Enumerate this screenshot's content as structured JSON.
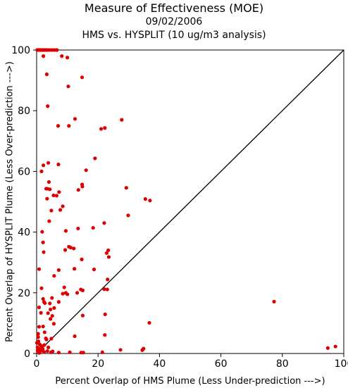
{
  "chart_data": {
    "type": "scatter",
    "title": "Measure of Effectiveness (MOE)",
    "subtitle": "09/02/2006",
    "subtitle2": "HMS vs. HYSPLIT  (10 ug/m3 analysis)",
    "xlabel": "Percent Overlap of HMS Plume (Less Under-prediction --->)",
    "ylabel": "Percent Overlap of HYSPLIT Plume (Less Over-prediction --->)",
    "xlim": [
      0,
      100
    ],
    "ylim": [
      0,
      100
    ],
    "xticks": [
      0,
      20,
      40,
      60,
      80,
      100
    ],
    "yticks": [
      0,
      20,
      40,
      60,
      80,
      100
    ],
    "xtick_labels": [
      "0",
      "20",
      "40",
      "60",
      "80",
      "100"
    ],
    "ytick_labels": [
      "0",
      "20",
      "40",
      "60",
      "80",
      "100"
    ],
    "reference_line": {
      "from": [
        0,
        0
      ],
      "to": [
        100,
        100
      ],
      "color": "#000000"
    },
    "marker_color": "#dd0000",
    "series": [
      {
        "points": [
          [
            0.2,
            100
          ],
          [
            0.5,
            100
          ],
          [
            0.8,
            100
          ],
          [
            1.2,
            100
          ],
          [
            1.6,
            100
          ],
          [
            2.0,
            100
          ],
          [
            2.5,
            100
          ],
          [
            3.0,
            100
          ],
          [
            3.5,
            100
          ],
          [
            4.2,
            100
          ],
          [
            5.0,
            100
          ],
          [
            5.8,
            100
          ],
          [
            6.6,
            100
          ],
          [
            2.2,
            98
          ],
          [
            8.2,
            98
          ],
          [
            10.0,
            97.5
          ],
          [
            14.8,
            91
          ],
          [
            3.3,
            92
          ],
          [
            10.3,
            88
          ],
          [
            3.6,
            81.5
          ],
          [
            7.0,
            75
          ],
          [
            10.5,
            75
          ],
          [
            12.5,
            77.3
          ],
          [
            21.0,
            74
          ],
          [
            22.2,
            74.3
          ],
          [
            27.7,
            77
          ],
          [
            3.8,
            62.8
          ],
          [
            2.2,
            62
          ],
          [
            1.6,
            60
          ],
          [
            7.1,
            62.3
          ],
          [
            19.0,
            64.3
          ],
          [
            16.1,
            60.4
          ],
          [
            3.1,
            54.3
          ],
          [
            3.5,
            54.3
          ],
          [
            4.3,
            54.1
          ],
          [
            4.0,
            56.5
          ],
          [
            3.4,
            51.0
          ],
          [
            5.5,
            52.1
          ],
          [
            6.5,
            52.0
          ],
          [
            7.3,
            53.2
          ],
          [
            8.5,
            48.5
          ],
          [
            7.7,
            47.3
          ],
          [
            4.8,
            47.1
          ],
          [
            14.8,
            55.7
          ],
          [
            14.9,
            55.0
          ],
          [
            13.6,
            53.9
          ],
          [
            29.2,
            54.6
          ],
          [
            29.8,
            45.5
          ],
          [
            35.4,
            50.9
          ],
          [
            36.9,
            50.4
          ],
          [
            22.0,
            43.0
          ],
          [
            4.1,
            43.6
          ],
          [
            1.8,
            40.1
          ],
          [
            18.4,
            41.4
          ],
          [
            13.5,
            41.2
          ],
          [
            9.5,
            40.4
          ],
          [
            2.1,
            36.6
          ],
          [
            2.3,
            33.4
          ],
          [
            9.3,
            34.1
          ],
          [
            11.1,
            34.9
          ],
          [
            10.5,
            35.2
          ],
          [
            12.1,
            34.6
          ],
          [
            14.7,
            31.0
          ],
          [
            22.8,
            33.1
          ],
          [
            23.3,
            34.0
          ],
          [
            23.5,
            31.8
          ],
          [
            12.3,
            27.9
          ],
          [
            0.8,
            27.8
          ],
          [
            5.7,
            25.6
          ],
          [
            7.2,
            27.5
          ],
          [
            18.7,
            27.7
          ],
          [
            23.1,
            24.4
          ],
          [
            22.0,
            21.2
          ],
          [
            23.0,
            21.1
          ],
          [
            14.4,
            21.1
          ],
          [
            15.0,
            20.8
          ],
          [
            13.2,
            20.0
          ],
          [
            9.0,
            21.8
          ],
          [
            9.5,
            20.0
          ],
          [
            8.5,
            19.7
          ],
          [
            10.0,
            19.5
          ],
          [
            1.6,
            21.5
          ],
          [
            2.1,
            18.0
          ],
          [
            2.4,
            17.0
          ],
          [
            2.7,
            16.6
          ],
          [
            4.3,
            16.5
          ],
          [
            5.0,
            18.3
          ],
          [
            7.2,
            17.0
          ],
          [
            0.8,
            15.2
          ],
          [
            1.4,
            13.4
          ],
          [
            3.7,
            13.3
          ],
          [
            4.5,
            14.5
          ],
          [
            5.7,
            15.0
          ],
          [
            5.1,
            12.4
          ],
          [
            4.5,
            11.4
          ],
          [
            5.6,
            9.8
          ],
          [
            15.0,
            12.5
          ],
          [
            22.3,
            12.9
          ],
          [
            36.7,
            10.1
          ],
          [
            77.3,
            17.1
          ],
          [
            0.8,
            8.8
          ],
          [
            2.1,
            8.9
          ],
          [
            2.6,
            7.0
          ],
          [
            3.0,
            5.0
          ],
          [
            0.5,
            6.5
          ],
          [
            12.4,
            5.7
          ],
          [
            22.2,
            6.1
          ],
          [
            0.5,
            5.4
          ],
          [
            0.6,
            4.0
          ],
          [
            1.0,
            3.0
          ],
          [
            1.5,
            2.5
          ],
          [
            2.5,
            2.8
          ],
          [
            3.2,
            4.6
          ],
          [
            4.8,
            4.9
          ],
          [
            0.3,
            2.0
          ],
          [
            1.0,
            1.5
          ],
          [
            2.0,
            1.5
          ],
          [
            1.5,
            1.0
          ],
          [
            0.5,
            0.5
          ],
          [
            1.0,
            0.3
          ],
          [
            2.4,
            0.5
          ],
          [
            3.5,
            0.8
          ],
          [
            4.7,
            0.4
          ],
          [
            5.2,
            0.7
          ],
          [
            7.2,
            0.3
          ],
          [
            10.8,
            0.4
          ],
          [
            14.5,
            0.3
          ],
          [
            15.2,
            0.3
          ],
          [
            21.4,
            0.4
          ],
          [
            27.3,
            1.2
          ],
          [
            34.4,
            1.1
          ],
          [
            34.8,
            1.6
          ],
          [
            94.8,
            1.8
          ],
          [
            97.3,
            2.3
          ],
          [
            0.1,
            3.5
          ],
          [
            0.3,
            1.0
          ],
          [
            0.8,
            0.2
          ],
          [
            1.8,
            2.2
          ],
          [
            3.8,
            2.0
          ]
        ]
      }
    ]
  }
}
